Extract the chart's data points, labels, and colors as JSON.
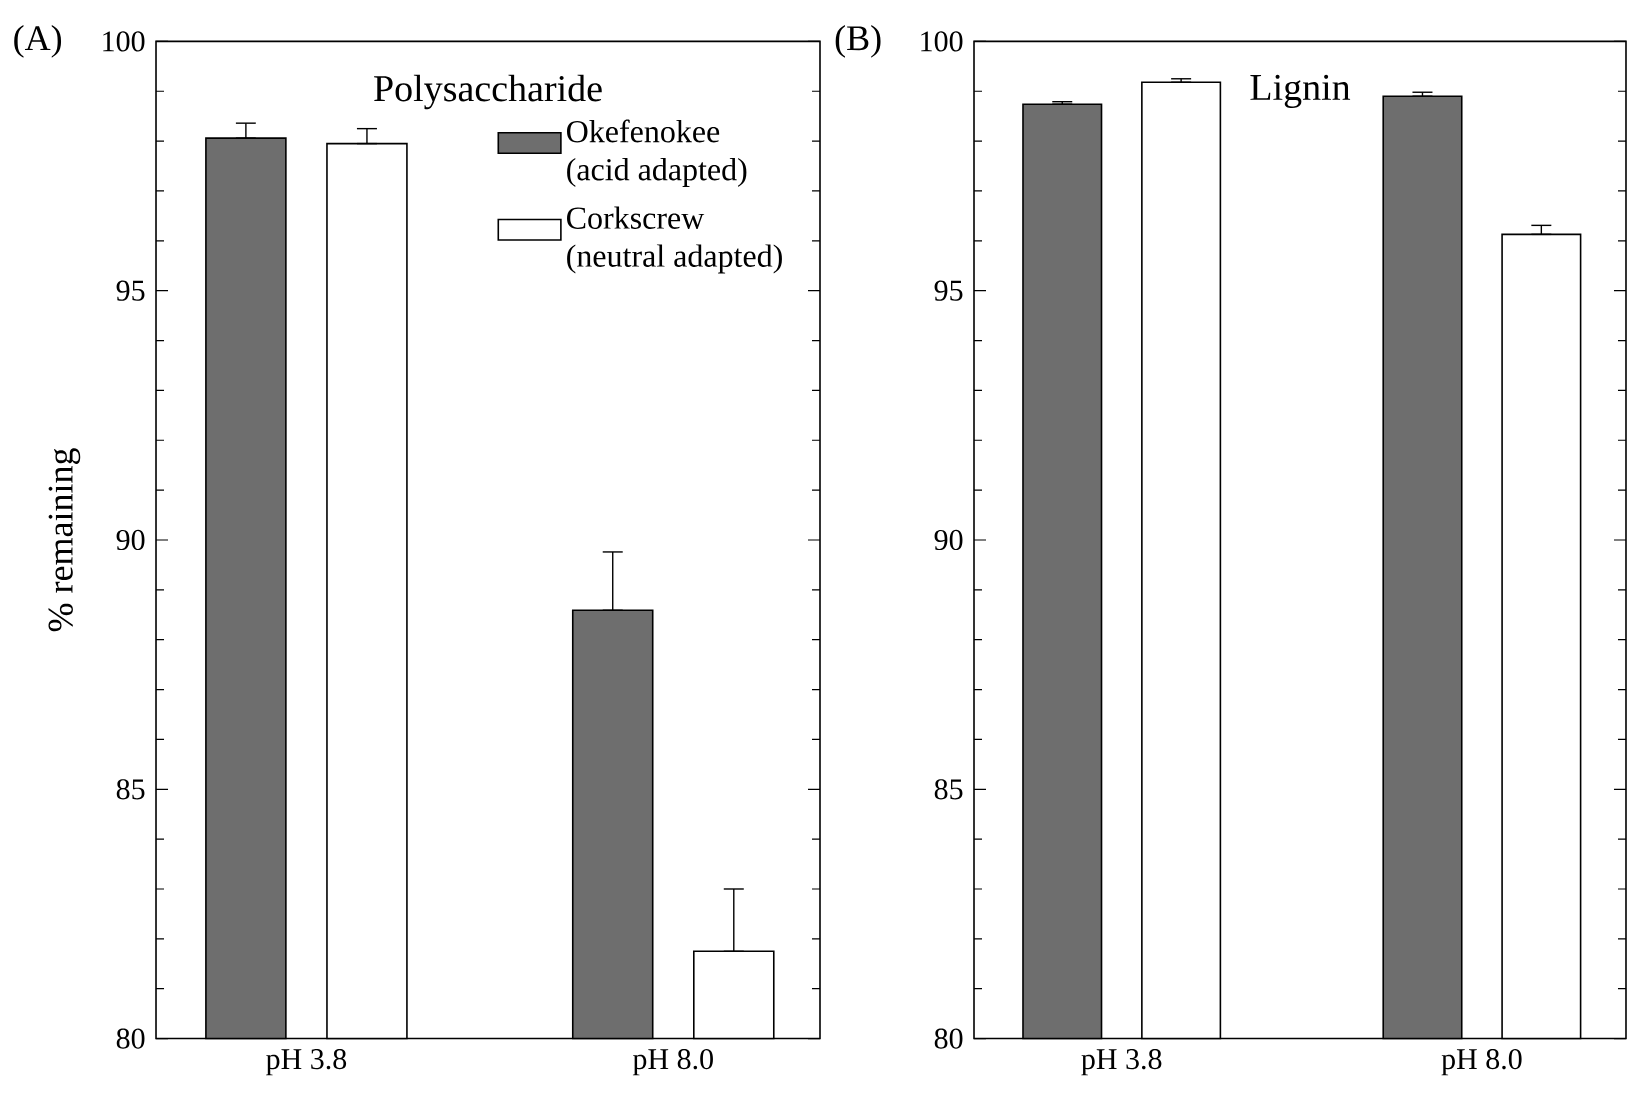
{
  "chart_data": [
    {
      "type": "bar",
      "title": "Polysaccharide",
      "ylabel": "% remaining",
      "categories": [
        "pH 3.8",
        "pH 8.0"
      ],
      "series": [
        {
          "name": "Okefenokee (acid adapted)",
          "color": "#6e6e6e",
          "values": [
            98.06,
            88.59
          ],
          "errors": [
            [
              98.06,
              98.36
            ],
            [
              88.59,
              89.76
            ]
          ]
        },
        {
          "name": "Corkscrew (neutral adapted)",
          "color": "#ffffff",
          "values": [
            97.95,
            81.75
          ],
          "errors": [
            [
              97.95,
              98.25
            ],
            [
              81.75,
              83.0
            ]
          ]
        }
      ],
      "ylim": [
        80,
        100
      ],
      "yticks": [
        80,
        {
          "value": 81,
          "label": null
        },
        {
          "value": 82,
          "label": null
        },
        {
          "value": 83,
          "label": null
        },
        {
          "value": 84,
          "label": null
        },
        85,
        {
          "value": 86,
          "label": null
        },
        {
          "value": 87,
          "label": null
        },
        {
          "value": 88,
          "label": null
        },
        {
          "value": 89,
          "label": null
        },
        90,
        {
          "value": 91,
          "label": null
        },
        {
          "value": 92,
          "label": null
        },
        {
          "value": 93,
          "label": null
        },
        {
          "value": 94,
          "label": null
        },
        95,
        {
          "value": 96,
          "label": null
        },
        {
          "value": 97,
          "label": null
        },
        {
          "value": 98,
          "label": null
        },
        {
          "value": 99,
          "label": null
        },
        100
      ],
      "legend": "top right",
      "annotations": [
        "(A)"
      ]
    },
    {
      "type": "bar",
      "title": "Lignin",
      "categories": [
        "pH 3.8",
        "pH 8.0"
      ],
      "series": [
        {
          "color": "#6e6e6e",
          "values": [
            98.74,
            98.9
          ],
          "errors": [
            [
              98.74,
              98.79
            ],
            [
              98.9,
              98.98
            ]
          ]
        },
        {
          "color": "#ffffff",
          "values": [
            99.18,
            96.13
          ],
          "errors": [
            [
              99.18,
              99.25
            ],
            [
              96.13,
              96.31
            ]
          ]
        }
      ],
      "ylim": [
        80,
        100
      ],
      "yticks": [
        80,
        {
          "value": 81,
          "label": null
        },
        {
          "value": 82,
          "label": null
        },
        {
          "value": 83,
          "label": null
        },
        {
          "value": 84,
          "label": null
        },
        85,
        {
          "value": 86,
          "label": null
        },
        {
          "value": 87,
          "label": null
        },
        {
          "value": 88,
          "label": null
        },
        {
          "value": 89,
          "label": null
        },
        90,
        {
          "value": 91,
          "label": null
        },
        {
          "value": 92,
          "label": null
        },
        {
          "value": 93,
          "label": null
        },
        {
          "value": 94,
          "label": null
        },
        95,
        {
          "value": 96,
          "label": null
        },
        {
          "value": 97,
          "label": null
        },
        {
          "value": 98,
          "label": null
        },
        {
          "value": 99,
          "label": null
        },
        100
      ],
      "legend": false,
      "annotations": [
        "(B)"
      ]
    }
  ]
}
